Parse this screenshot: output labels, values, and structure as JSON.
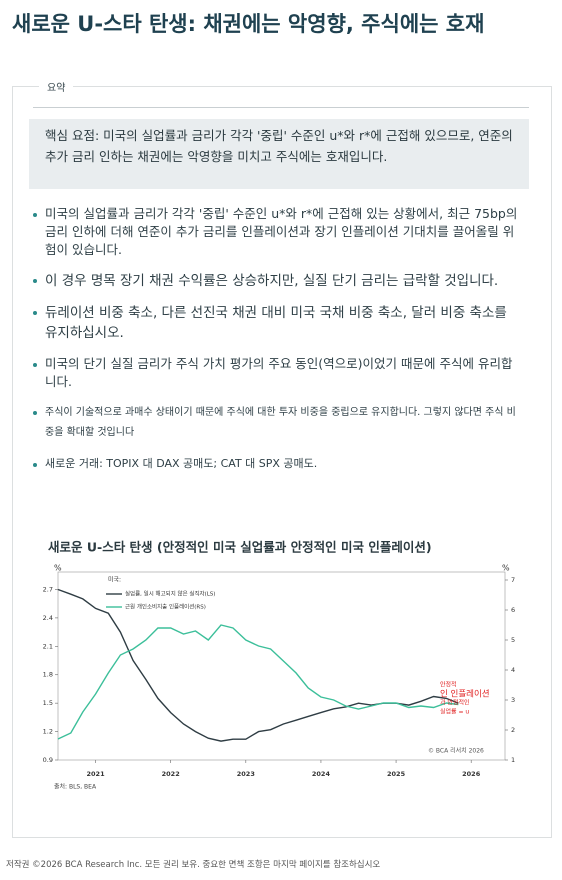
{
  "header": {
    "title": "새로운 U-스타 탄생: 채권에는 악영향, 주식에는 호재"
  },
  "summary": {
    "label": "요약",
    "key_point": "핵심 요점: 미국의 실업률과 금리가 각각 '중립' 수준인 u*와 r*에 근접해 있으므로, 연준의 추가 금리 인하는 채권에는 악영향을 미치고 주식에는 호재입니다.",
    "bullets": [
      "미국의 실업률과 금리가 각각 '중립' 수준인 u*와 r*에 근접해 있는 상황에서, 최근 75bp의 금리 인하에 더해 연준이 추가 금리를 인플레이션과 장기 인플레이션 기대치를 끌어올릴 위험이 있습니다.",
      "이 경우 명목 장기 채권 수익률은 상승하지만, 실질 단기 금리는 급락할 것입니다.",
      "듀레이션 비중 축소, 다른 선진국 채권 대비 미국 국채 비중 축소, 달러 비중 축소를 유지하십시오.",
      "미국의 단기 실질 금리가 주식 가치 평가의 주요 동인(역으로)이었기 때문에 주식에 유리합니다.",
      "주식이 기술적으로 과매수 상태이기 때문에 주식에 대한 투자 비중을 중립으로 유지합니다. 그렇지 않다면 주식 비중을 확대할 것입니다",
      "새로운 거래: TOPIX 대 DAX 공매도; CAT 대 SPX 공매도."
    ]
  },
  "chart_data": {
    "type": "line",
    "title": "새로운 U-스타 탄생 (안정적인 미국 실업률과 안정적인 미국 인플레이션)",
    "ylabel": "%",
    "y2label": "%",
    "legend_title": "미국:",
    "x": [
      2020.5,
      2020.67,
      2020.83,
      2021.0,
      2021.17,
      2021.33,
      2021.5,
      2021.67,
      2021.83,
      2022.0,
      2022.17,
      2022.33,
      2022.5,
      2022.67,
      2022.83,
      2023.0,
      2023.17,
      2023.33,
      2023.5,
      2023.67,
      2023.83,
      2024.0,
      2024.17,
      2024.33,
      2024.5,
      2024.67,
      2024.83,
      2025.0,
      2025.17,
      2025.33,
      2025.5,
      2025.67,
      2025.83
    ],
    "series": [
      {
        "name": "실업률, 일시 해고되지 않은 실직자(LS)",
        "color": "#2f3d44",
        "values": [
          2.7,
          2.65,
          2.6,
          2.5,
          2.45,
          2.25,
          1.95,
          1.75,
          1.55,
          1.4,
          1.28,
          1.2,
          1.13,
          1.1,
          1.12,
          1.12,
          1.2,
          1.22,
          1.28,
          1.32,
          1.36,
          1.4,
          1.44,
          1.46,
          1.5,
          1.48,
          1.5,
          1.5,
          1.48,
          1.52,
          1.57,
          1.55,
          1.5
        ]
      },
      {
        "name": "근원 개인소비지출 인플레이션(RS)",
        "color": "#3cbf9a",
        "axis": "y2",
        "values": [
          1.7,
          1.9,
          2.6,
          3.2,
          3.9,
          4.5,
          4.7,
          5.0,
          5.4,
          5.4,
          5.2,
          5.3,
          5.0,
          5.5,
          5.4,
          5.0,
          4.8,
          4.7,
          4.3,
          3.9,
          3.4,
          3.1,
          3.0,
          2.8,
          2.7,
          2.8,
          2.9,
          2.9,
          2.75,
          2.8,
          2.75,
          2.9,
          2.85
        ]
      }
    ],
    "xlim": [
      2020.5,
      2026.45
    ],
    "xticks": [
      2021,
      2022,
      2023,
      2024,
      2025,
      2026
    ],
    "ylim": [
      0.9,
      2.8
    ],
    "yticks": [
      0.9,
      1.2,
      1.5,
      1.8,
      2.1,
      2.4,
      2.7
    ],
    "y2lim": [
      1,
      7
    ],
    "y2ticks": [
      1,
      2,
      3,
      4,
      5,
      6,
      7
    ],
    "annotation_lines": [
      "안정적",
      "인 인플레이션",
      "과 안정적인",
      "실업률 = u"
    ],
    "annotation_color": "#e02020",
    "credit": "© BCA 리서치 2026",
    "source": "출처: BLS, BEA"
  },
  "footer": "저작권 ©2026 BCA Research Inc. 모든 권리 보유. 중요한 면책 조항은 마지막 페이지를 참조하십시오"
}
